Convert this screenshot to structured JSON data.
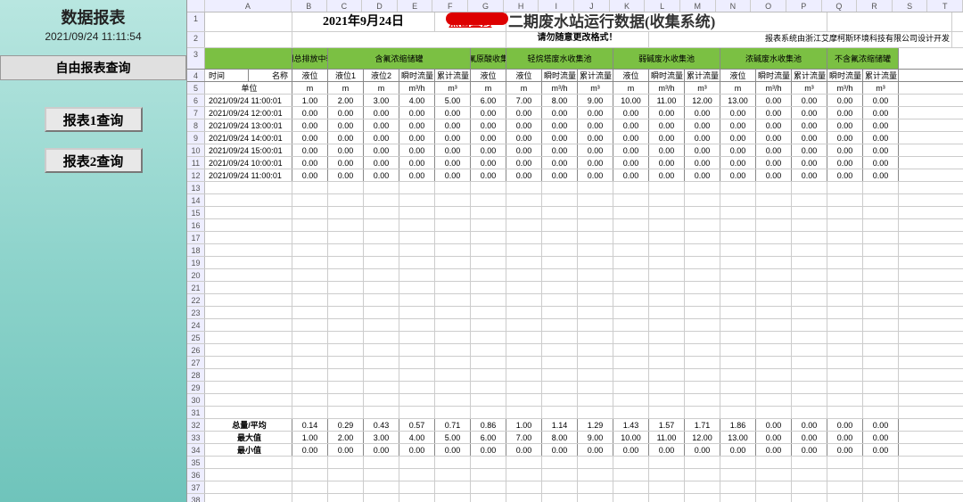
{
  "sidebar": {
    "title": "数据报表",
    "timestamp": "2021/09/24 11:11:54",
    "freeQuery": "自由报表查询",
    "btn1": "报表1查询",
    "btn2": "报表2查询"
  },
  "sheet": {
    "colLetters": [
      "A",
      "B",
      "C",
      "D",
      "E",
      "F",
      "G",
      "H",
      "I",
      "J",
      "K",
      "L",
      "M",
      "N",
      "O",
      "P",
      "Q",
      "R",
      "S",
      "T"
    ],
    "titleDate": "2021年9月24日",
    "queryBtn": "点击查询",
    "mainTitle": "二期废水站运行数据(收集系统)",
    "warning": "请勿随意更改格式！",
    "credit": "报表系统由浙江艾摩柯斯环境科技有限公司设计开发",
    "groupHeaders": [
      "一期总排放中转池",
      "含氟浓缩储罐",
      "含氟原酸收集池",
      "轻烷塔废水收集池",
      "弱碱废水收集池",
      "浓碱废水收集池",
      "不含氟浓缩储罐"
    ],
    "timeColHdr": "时间",
    "nameColHdr": "名称",
    "subHeaders": [
      "液位",
      "液位1",
      "液位2",
      "瞬时流量",
      "累计流量",
      "液位",
      "液位",
      "瞬时流量",
      "累计流量",
      "液位",
      "瞬时流量",
      "累计流量",
      "液位",
      "瞬时流量",
      "累计流量",
      "瞬时流量",
      "累计流量"
    ],
    "unitLabel": "单位",
    "units": [
      "m",
      "m",
      "m",
      "m³/h",
      "m³",
      "m",
      "m",
      "m³/h",
      "m³",
      "m",
      "m³/h",
      "m³",
      "m",
      "m³/h",
      "m³",
      "m³/h",
      "m³"
    ],
    "rows": [
      {
        "t": "2021/09/24 11:00:01",
        "v": [
          "1.00",
          "2.00",
          "3.00",
          "4.00",
          "5.00",
          "6.00",
          "7.00",
          "8.00",
          "9.00",
          "10.00",
          "11.00",
          "12.00",
          "13.00",
          "0.00",
          "0.00",
          "0.00",
          "0.00"
        ]
      },
      {
        "t": "2021/09/24 12:00:01",
        "v": [
          "0.00",
          "0.00",
          "0.00",
          "0.00",
          "0.00",
          "0.00",
          "0.00",
          "0.00",
          "0.00",
          "0.00",
          "0.00",
          "0.00",
          "0.00",
          "0.00",
          "0.00",
          "0.00",
          "0.00"
        ]
      },
      {
        "t": "2021/09/24 13:00:01",
        "v": [
          "0.00",
          "0.00",
          "0.00",
          "0.00",
          "0.00",
          "0.00",
          "0.00",
          "0.00",
          "0.00",
          "0.00",
          "0.00",
          "0.00",
          "0.00",
          "0.00",
          "0.00",
          "0.00",
          "0.00"
        ]
      },
      {
        "t": "2021/09/24 14:00:01",
        "v": [
          "0.00",
          "0.00",
          "0.00",
          "0.00",
          "0.00",
          "0.00",
          "0.00",
          "0.00",
          "0.00",
          "0.00",
          "0.00",
          "0.00",
          "0.00",
          "0.00",
          "0.00",
          "0.00",
          "0.00"
        ]
      },
      {
        "t": "2021/09/24 15:00:01",
        "v": [
          "0.00",
          "0.00",
          "0.00",
          "0.00",
          "0.00",
          "0.00",
          "0.00",
          "0.00",
          "0.00",
          "0.00",
          "0.00",
          "0.00",
          "0.00",
          "0.00",
          "0.00",
          "0.00",
          "0.00"
        ]
      },
      {
        "t": "2021/09/24 10:00:01",
        "v": [
          "0.00",
          "0.00",
          "0.00",
          "0.00",
          "0.00",
          "0.00",
          "0.00",
          "0.00",
          "0.00",
          "0.00",
          "0.00",
          "0.00",
          "0.00",
          "0.00",
          "0.00",
          "0.00",
          "0.00"
        ]
      },
      {
        "t": "2021/09/24 11:00:01",
        "v": [
          "0.00",
          "0.00",
          "0.00",
          "0.00",
          "0.00",
          "0.00",
          "0.00",
          "0.00",
          "0.00",
          "0.00",
          "0.00",
          "0.00",
          "0.00",
          "0.00",
          "0.00",
          "0.00",
          "0.00"
        ]
      }
    ],
    "summaryLabels": [
      "总量/平均",
      "最大值",
      "最小值"
    ],
    "summaryRows": [
      [
        "0.14",
        "0.29",
        "0.43",
        "0.57",
        "0.71",
        "0.86",
        "1.00",
        "1.14",
        "1.29",
        "1.43",
        "1.57",
        "1.71",
        "1.86",
        "0.00",
        "0.00",
        "0.00",
        "0.00"
      ],
      [
        "1.00",
        "2.00",
        "3.00",
        "4.00",
        "5.00",
        "6.00",
        "7.00",
        "8.00",
        "9.00",
        "10.00",
        "11.00",
        "12.00",
        "13.00",
        "0.00",
        "0.00",
        "0.00",
        "0.00"
      ],
      [
        "0.00",
        "0.00",
        "0.00",
        "0.00",
        "0.00",
        "0.00",
        "0.00",
        "0.00",
        "0.00",
        "0.00",
        "0.00",
        "0.00",
        "0.00",
        "0.00",
        "0.00",
        "0.00",
        "0.00"
      ]
    ]
  },
  "colors": {
    "headerGreen": "#7bc043",
    "sidebarTop": "#b8e6e0"
  }
}
